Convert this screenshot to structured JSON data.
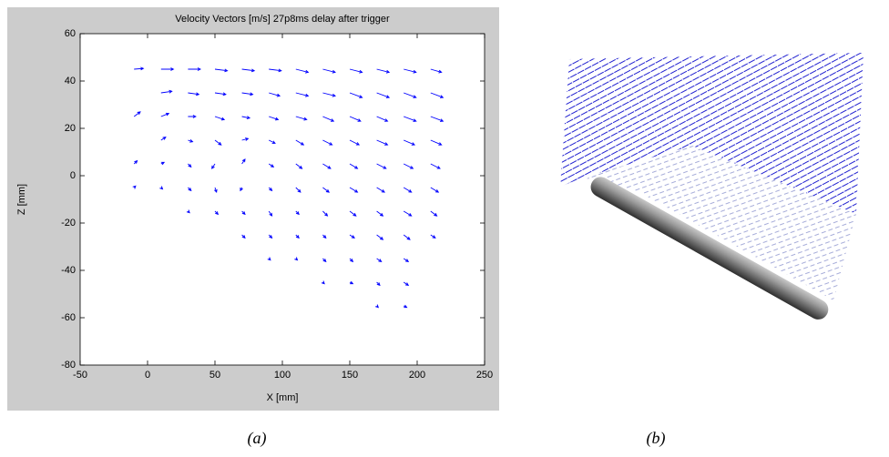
{
  "chart_data": {
    "type": "quiver",
    "title": "Velocity Vectors [m/s] 27p8ms delay after trigger",
    "xlabel": "X [mm]",
    "ylabel": "Z [mm]",
    "color": "#0000ff",
    "xlim": [
      -50,
      250
    ],
    "xticks": [
      -50,
      0,
      50,
      100,
      150,
      200,
      250
    ],
    "ylim": [
      -80,
      60
    ],
    "yticks": [
      -80,
      -60,
      -40,
      -20,
      0,
      20,
      40,
      60
    ],
    "x": [
      -10,
      -10,
      -10,
      -10,
      10,
      10,
      10,
      10,
      10,
      10,
      30,
      30,
      30,
      30,
      30,
      30,
      30,
      50,
      50,
      50,
      50,
      50,
      50,
      50,
      70,
      70,
      70,
      70,
      70,
      70,
      70,
      70,
      90,
      90,
      90,
      90,
      90,
      90,
      90,
      90,
      90,
      110,
      110,
      110,
      110,
      110,
      110,
      110,
      110,
      110,
      130,
      130,
      130,
      130,
      130,
      130,
      130,
      130,
      130,
      130,
      150,
      150,
      150,
      150,
      150,
      150,
      150,
      150,
      150,
      150,
      170,
      170,
      170,
      170,
      170,
      170,
      170,
      170,
      170,
      170,
      170,
      190,
      190,
      190,
      190,
      190,
      190,
      190,
      190,
      190,
      190,
      190,
      210,
      210,
      210,
      210,
      210,
      210,
      210,
      210
    ],
    "z": [
      45,
      25,
      5,
      -5,
      45,
      35,
      25,
      15,
      5,
      -5,
      45,
      35,
      25,
      15,
      5,
      -5,
      -15,
      45,
      35,
      25,
      15,
      5,
      -5,
      -15,
      45,
      35,
      25,
      15,
      5,
      -5,
      -15,
      -25,
      45,
      35,
      25,
      15,
      5,
      -5,
      -15,
      -25,
      -35,
      45,
      35,
      25,
      15,
      5,
      -5,
      -15,
      -25,
      -35,
      45,
      35,
      25,
      15,
      5,
      -5,
      -15,
      -25,
      -35,
      -45,
      45,
      35,
      25,
      15,
      5,
      -5,
      -15,
      -25,
      -35,
      -45,
      45,
      35,
      25,
      15,
      5,
      -5,
      -15,
      -25,
      -35,
      -45,
      -55,
      45,
      35,
      25,
      15,
      5,
      -5,
      -15,
      -25,
      -35,
      -45,
      -55,
      45,
      35,
      25,
      15,
      5,
      -5,
      -15,
      -25
    ],
    "u": [
      6,
      4,
      2,
      1,
      8,
      7,
      5,
      3,
      2,
      1,
      8,
      7,
      5,
      3,
      2,
      2,
      1,
      8,
      7,
      6,
      4,
      -2,
      1,
      2,
      8,
      7,
      5,
      4,
      2,
      -1,
      2,
      2,
      8,
      7,
      6,
      4,
      3,
      2,
      2,
      2,
      1,
      8,
      8,
      7,
      5,
      4,
      3,
      2,
      2,
      1,
      8,
      8,
      7,
      6,
      5,
      4,
      3,
      2,
      2,
      1,
      8,
      8,
      7,
      6,
      5,
      5,
      4,
      3,
      2,
      2,
      8,
      8,
      7,
      7,
      6,
      5,
      4,
      4,
      3,
      2,
      1,
      8,
      8,
      8,
      7,
      6,
      5,
      5,
      4,
      3,
      3,
      2,
      7,
      8,
      8,
      7,
      6,
      5,
      4,
      3
    ],
    "w": [
      0.5,
      3,
      2,
      1,
      0,
      1,
      2,
      2,
      1,
      -1,
      0,
      -1,
      0,
      -1,
      -2,
      -2,
      -1,
      -1,
      -1,
      -2,
      -3,
      -3,
      -3,
      -2,
      -1,
      -1,
      -1,
      1,
      3,
      -2,
      -2,
      -2,
      -1,
      -2,
      -2,
      -2,
      -2,
      -2,
      -3,
      -2,
      -1,
      -2,
      -2,
      -2,
      -3,
      -3,
      -3,
      -2,
      -2,
      -1,
      -2,
      -2,
      -3,
      -3,
      -3,
      -3,
      -3,
      -2,
      -2,
      -1,
      -2,
      -3,
      -3,
      -3,
      -3,
      -3,
      -3,
      -2,
      -2,
      -1,
      -2,
      -3,
      -3,
      -3,
      -3,
      -3,
      -3,
      -3,
      -2,
      -2,
      -1,
      -2,
      -3,
      -3,
      -3,
      -3,
      -3,
      -3,
      -3,
      -2,
      -2,
      -1,
      -2,
      -3,
      -3,
      -3,
      -3,
      -3,
      -3,
      -2
    ]
  },
  "captions": [
    "(a)",
    "(b)"
  ]
}
